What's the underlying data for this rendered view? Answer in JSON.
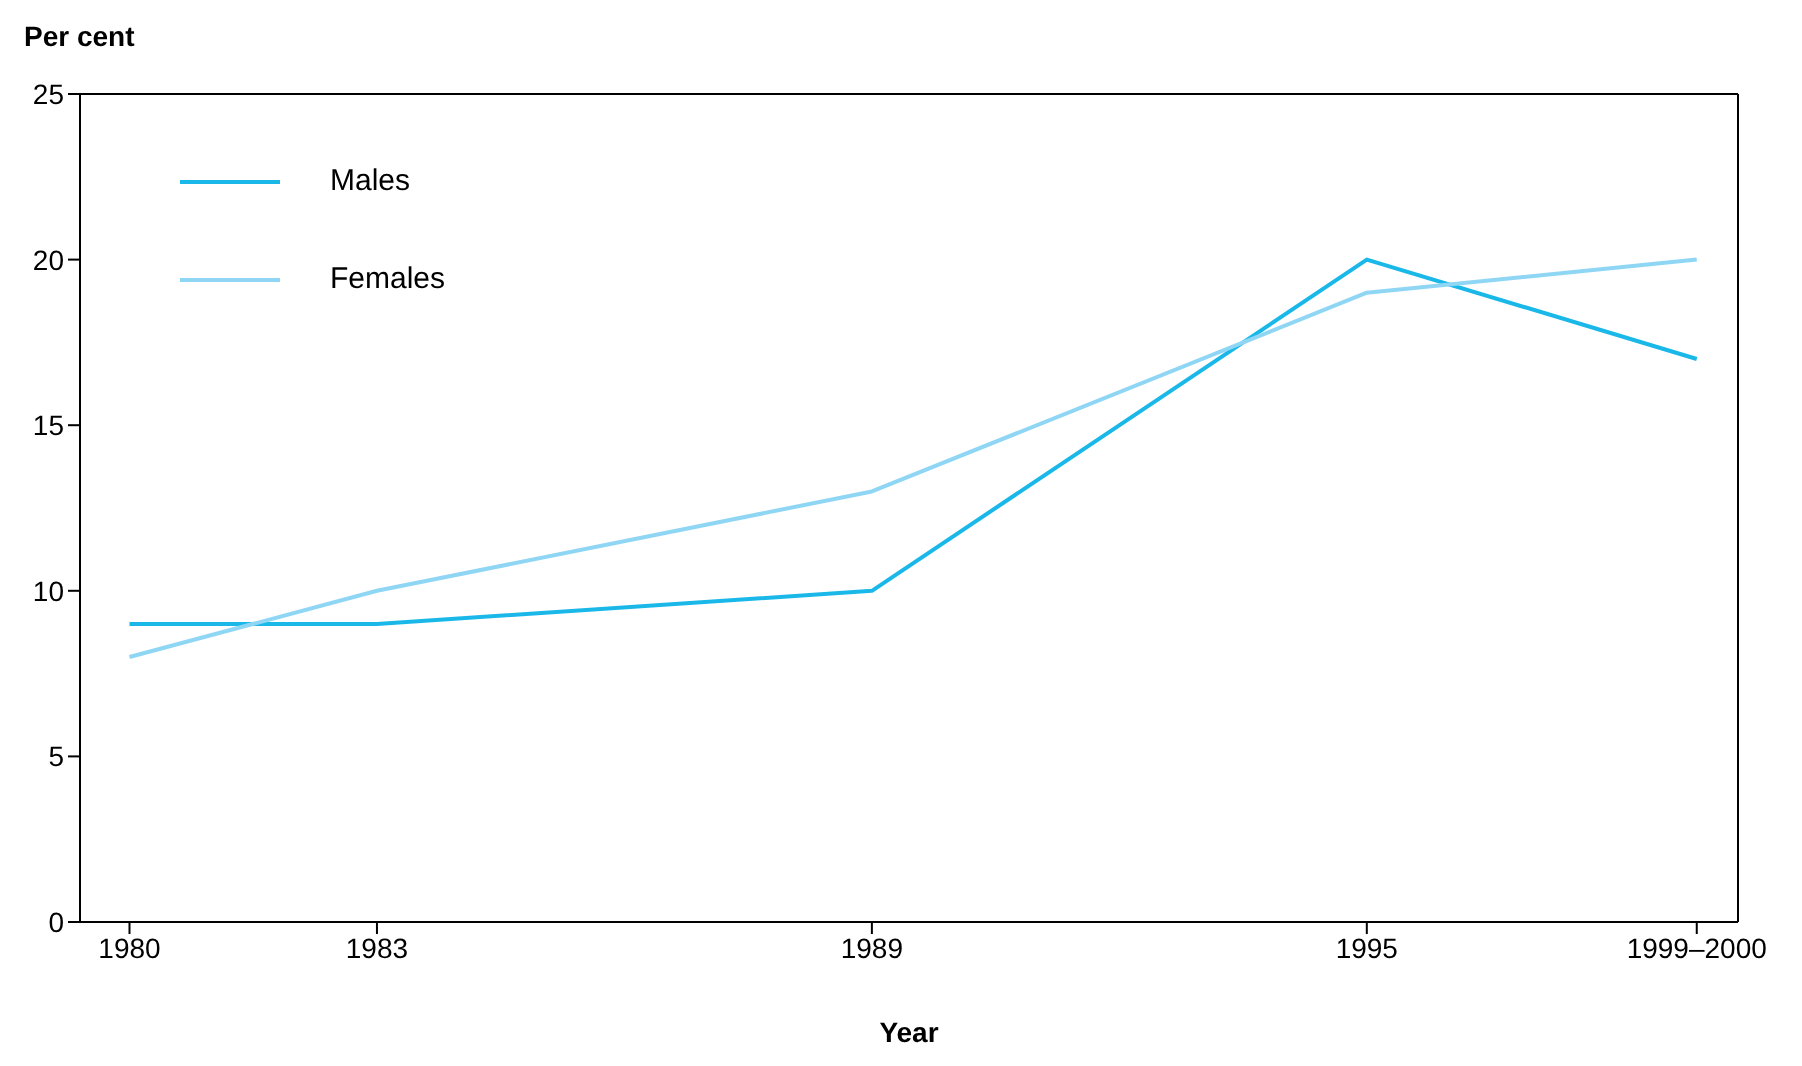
{
  "chart_data": {
    "type": "line",
    "ylabel": "Per cent",
    "xlabel": "Year",
    "x": [
      1980,
      1983,
      1989,
      1995,
      1999
    ],
    "series": [
      {
        "name": "Males",
        "color": "#1ab8e8",
        "values": [
          9,
          9,
          10,
          20,
          17
        ]
      },
      {
        "name": "Females",
        "color": "#8fd6f5",
        "values": [
          8,
          10,
          13,
          19,
          20
        ]
      }
    ],
    "xlim": [
      1979.4,
      1999.5
    ],
    "xticks": [
      1980,
      1983,
      1989,
      1995,
      {
        "value": 1999,
        "label": "1999–2000"
      }
    ],
    "ylim": [
      0,
      25
    ],
    "yticks": [
      0,
      5,
      10,
      15,
      20,
      25
    ],
    "grid": false,
    "legend": "top left",
    "marker": "none",
    "line_style": "solid"
  }
}
